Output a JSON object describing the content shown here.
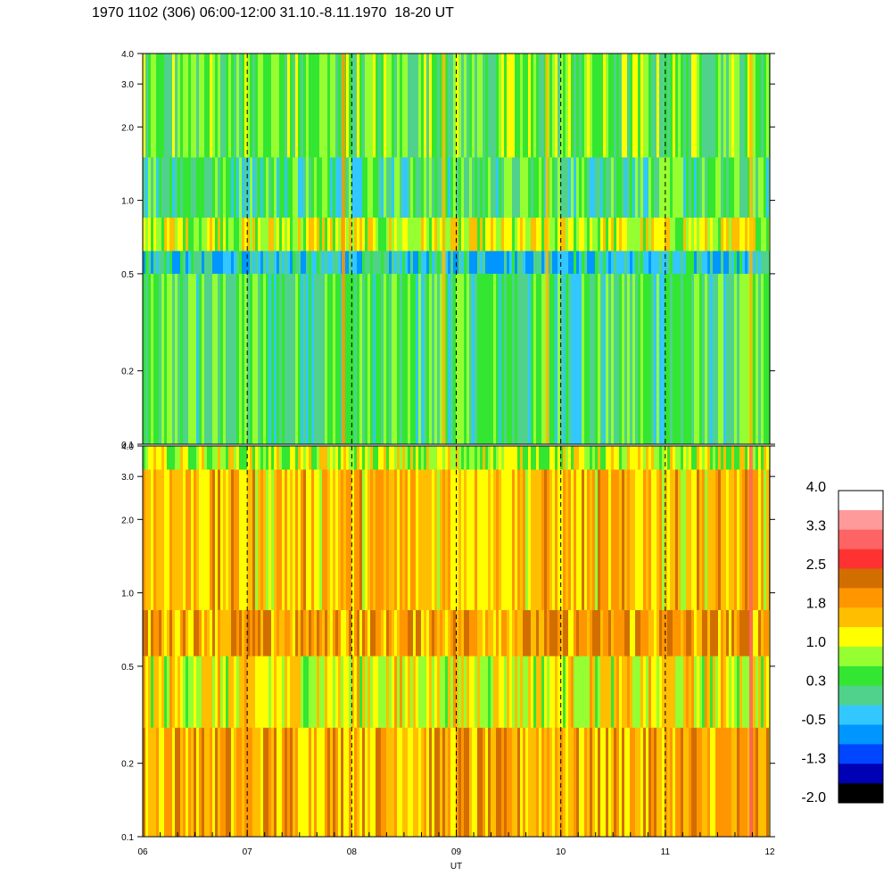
{
  "title": "1970 1102 (306) 06:00-12:00 31.10.-8.11.1970  18-20 UT",
  "chart_data": {
    "type": "heatmap",
    "title": "1970 1102 (306) 06:00-12:00 31.10.-8.11.1970  18-20 UT",
    "xlabel": "UT",
    "x_ticks": [
      "06",
      "07",
      "08",
      "09",
      "10",
      "11",
      "12"
    ],
    "x_range": [
      6,
      12
    ],
    "dashed_hours": [
      7,
      8,
      9,
      10,
      11
    ],
    "panels": [
      {
        "name": "upper",
        "y_ticks": [
          "0.1",
          "0.2",
          "0.5",
          "1.0",
          "2.0",
          "3.0",
          "4.0"
        ],
        "y_range": [
          0.1,
          4.0
        ],
        "y_scale": "log",
        "typical_level": 0.3,
        "bands": [
          {
            "y_from": 0.1,
            "y_to": 0.5,
            "level": 0.3
          },
          {
            "y_from": 0.5,
            "y_to": 0.62,
            "level": -0.3
          },
          {
            "y_from": 0.62,
            "y_to": 0.85,
            "level": 1.0
          },
          {
            "y_from": 0.85,
            "y_to": 1.5,
            "level": 0.3
          },
          {
            "y_from": 1.5,
            "y_to": 4.0,
            "level": 0.5
          }
        ],
        "spikes": [
          {
            "x": 7.92,
            "level": 2.0
          },
          {
            "x": 8.88,
            "level": 1.5
          },
          {
            "x": 9.87,
            "level": 1.8
          },
          {
            "x": 11.82,
            "level": 1.8
          }
        ]
      },
      {
        "name": "lower",
        "y_ticks": [
          "0.1",
          "0.2",
          "0.5",
          "1.0",
          "2.0",
          "3.0",
          "4.0"
        ],
        "y_range": [
          0.1,
          4.0
        ],
        "y_scale": "log",
        "typical_level": 1.6,
        "bands": [
          {
            "y_from": 0.1,
            "y_to": 0.28,
            "level": 1.8
          },
          {
            "y_from": 0.28,
            "y_to": 0.55,
            "level": 1.2
          },
          {
            "y_from": 0.55,
            "y_to": 0.85,
            "level": 1.9
          },
          {
            "y_from": 0.85,
            "y_to": 3.2,
            "level": 1.6
          },
          {
            "y_from": 3.2,
            "y_to": 4.0,
            "level": 0.9
          }
        ],
        "spikes": [
          {
            "x": 11.82,
            "level": 3.0
          }
        ]
      }
    ],
    "colorbar": {
      "labels": [
        "4.0",
        "3.3",
        "2.5",
        "1.8",
        "1.0",
        "0.3",
        "-0.5",
        "-1.3",
        "-2.0"
      ],
      "colors": [
        "#ffffff",
        "#ff9a9a",
        "#ff6464",
        "#ff3232",
        "#d26e00",
        "#ff9600",
        "#ffbe00",
        "#ffff00",
        "#96ff32",
        "#32e632",
        "#50d28c",
        "#32c8ff",
        "#0096ff",
        "#0046ff",
        "#0000b4",
        "#000000"
      ],
      "range": [
        -2.0,
        4.0
      ]
    }
  }
}
